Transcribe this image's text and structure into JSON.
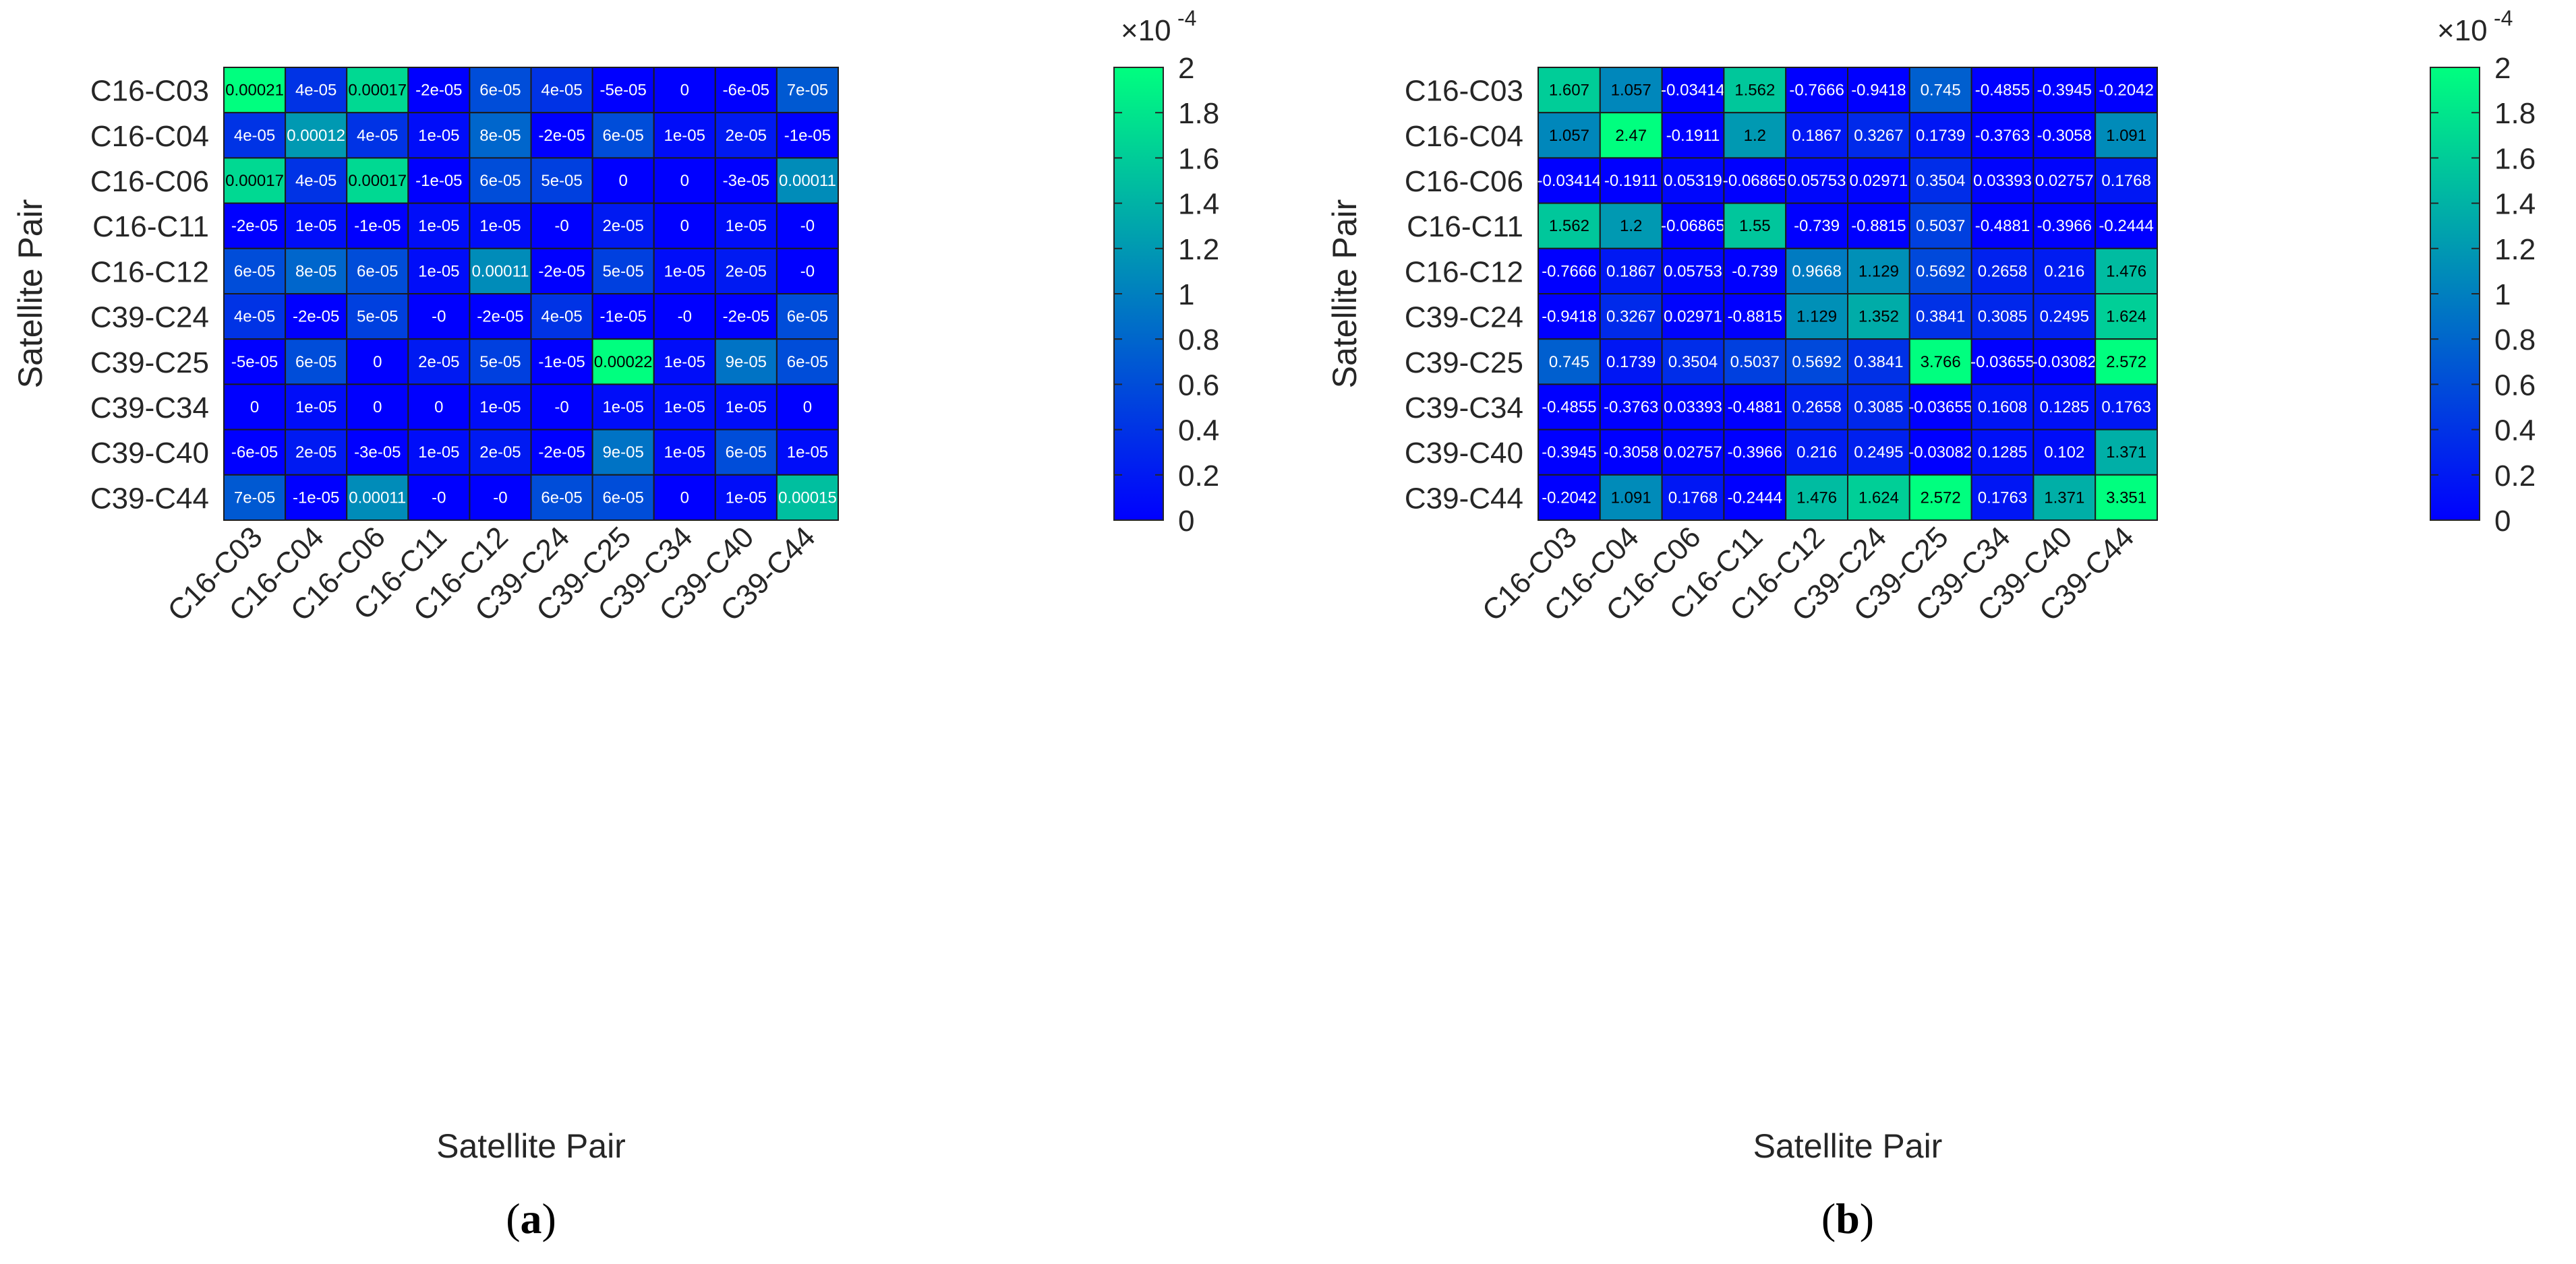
{
  "chart_data": [
    {
      "type": "heatmap",
      "panel_label": "(a)",
      "panel_letter": "a",
      "xlabel": "Satellite Pair",
      "ylabel": "Satellite Pair",
      "rows": [
        "C16-C03",
        "C16-C04",
        "C16-C06",
        "C16-C11",
        "C16-C12",
        "C39-C24",
        "C39-C25",
        "C39-C34",
        "C39-C40",
        "C39-C44"
      ],
      "cols": [
        "C16-C03",
        "C16-C04",
        "C16-C06",
        "C16-C11",
        "C16-C12",
        "C39-C24",
        "C39-C25",
        "C39-C34",
        "C39-C40",
        "C39-C44"
      ],
      "cell_text": [
        [
          "0.00021",
          "4e-05",
          "0.00017",
          "-2e-05",
          "6e-05",
          "4e-05",
          "-5e-05",
          "0",
          "-6e-05",
          "7e-05"
        ],
        [
          "4e-05",
          "0.00012",
          "4e-05",
          "1e-05",
          "8e-05",
          "-2e-05",
          "6e-05",
          "1e-05",
          "2e-05",
          "-1e-05"
        ],
        [
          "0.00017",
          "4e-05",
          "0.00017",
          "-1e-05",
          "6e-05",
          "5e-05",
          "0",
          "0",
          "-3e-05",
          "0.00011"
        ],
        [
          "-2e-05",
          "1e-05",
          "-1e-05",
          "1e-05",
          "1e-05",
          "-0",
          "2e-05",
          "0",
          "1e-05",
          "-0"
        ],
        [
          "6e-05",
          "8e-05",
          "6e-05",
          "1e-05",
          "0.00011",
          "-2e-05",
          "5e-05",
          "1e-05",
          "2e-05",
          "-0"
        ],
        [
          "4e-05",
          "-2e-05",
          "5e-05",
          "-0",
          "-2e-05",
          "4e-05",
          "-1e-05",
          "-0",
          "-2e-05",
          "6e-05"
        ],
        [
          "-5e-05",
          "6e-05",
          "0",
          "2e-05",
          "5e-05",
          "-1e-05",
          "0.00022",
          "1e-05",
          "9e-05",
          "6e-05"
        ],
        [
          "0",
          "1e-05",
          "0",
          "0",
          "1e-05",
          "-0",
          "1e-05",
          "1e-05",
          "1e-05",
          "0"
        ],
        [
          "-6e-05",
          "2e-05",
          "-3e-05",
          "1e-05",
          "2e-05",
          "-2e-05",
          "9e-05",
          "1e-05",
          "6e-05",
          "1e-05"
        ],
        [
          "7e-05",
          "-1e-05",
          "0.00011",
          "-0",
          "-0",
          "6e-05",
          "6e-05",
          "0",
          "1e-05",
          "0.00015"
        ]
      ],
      "colorbar": {
        "range": [
          0,
          2
        ],
        "ticks": [
          "0",
          "0.2",
          "0.4",
          "0.6",
          "0.8",
          "1",
          "1.2",
          "1.4",
          "1.6",
          "1.8",
          "2"
        ],
        "multiplier_base": "×10",
        "multiplier_exp": "-4",
        "cmap": [
          "#0000ff",
          "#00ff7f"
        ]
      }
    },
    {
      "type": "heatmap",
      "panel_label": "(b)",
      "panel_letter": "b",
      "xlabel": "Satellite Pair",
      "ylabel": "Satellite Pair",
      "rows": [
        "C16-C03",
        "C16-C04",
        "C16-C06",
        "C16-C11",
        "C16-C12",
        "C39-C24",
        "C39-C25",
        "C39-C34",
        "C39-C40",
        "C39-C44"
      ],
      "cols": [
        "C16-C03",
        "C16-C04",
        "C16-C06",
        "C16-C11",
        "C16-C12",
        "C39-C24",
        "C39-C25",
        "C39-C34",
        "C39-C40",
        "C39-C44"
      ],
      "cell_text": [
        [
          "1.607",
          "1.057",
          "-0.03414",
          "1.562",
          "-0.7666",
          "-0.9418",
          "0.745",
          "-0.4855",
          "-0.3945",
          "-0.2042"
        ],
        [
          "1.057",
          "2.47",
          "-0.1911",
          "1.2",
          "0.1867",
          "0.3267",
          "0.1739",
          "-0.3763",
          "-0.3058",
          "1.091"
        ],
        [
          "-0.03414",
          "-0.1911",
          "0.05319",
          "-0.06865",
          "0.05753",
          "0.02971",
          "0.3504",
          "0.03393",
          "0.02757",
          "0.1768"
        ],
        [
          "1.562",
          "1.2",
          "-0.06865",
          "1.55",
          "-0.739",
          "-0.8815",
          "0.5037",
          "-0.4881",
          "-0.3966",
          "-0.2444"
        ],
        [
          "-0.7666",
          "0.1867",
          "0.05753",
          "-0.739",
          "0.9668",
          "1.129",
          "0.5692",
          "0.2658",
          "0.216",
          "1.476"
        ],
        [
          "-0.9418",
          "0.3267",
          "0.02971",
          "-0.8815",
          "1.129",
          "1.352",
          "0.3841",
          "0.3085",
          "0.2495",
          "1.624"
        ],
        [
          "0.745",
          "0.1739",
          "0.3504",
          "0.5037",
          "0.5692",
          "0.3841",
          "3.766",
          "-0.03655",
          "-0.03082",
          "2.572"
        ],
        [
          "-0.4855",
          "-0.3763",
          "0.03393",
          "-0.4881",
          "0.2658",
          "0.3085",
          "-0.03655",
          "0.1608",
          "0.1285",
          "0.1763"
        ],
        [
          "-0.3945",
          "-0.3058",
          "0.02757",
          "-0.3966",
          "0.216",
          "0.2495",
          "-0.03082",
          "0.1285",
          "0.102",
          "1.371"
        ],
        [
          "-0.2042",
          "1.091",
          "0.1768",
          "-0.2444",
          "1.476",
          "1.624",
          "2.572",
          "0.1763",
          "1.371",
          "3.351"
        ]
      ],
      "colorbar": {
        "range": [
          0,
          2
        ],
        "ticks": [
          "0",
          "0.2",
          "0.4",
          "0.6",
          "0.8",
          "1",
          "1.2",
          "1.4",
          "1.6",
          "1.8",
          "2"
        ],
        "multiplier_base": "×10",
        "multiplier_exp": "-4",
        "cmap": [
          "#0000ff",
          "#00ff7f"
        ]
      }
    }
  ]
}
